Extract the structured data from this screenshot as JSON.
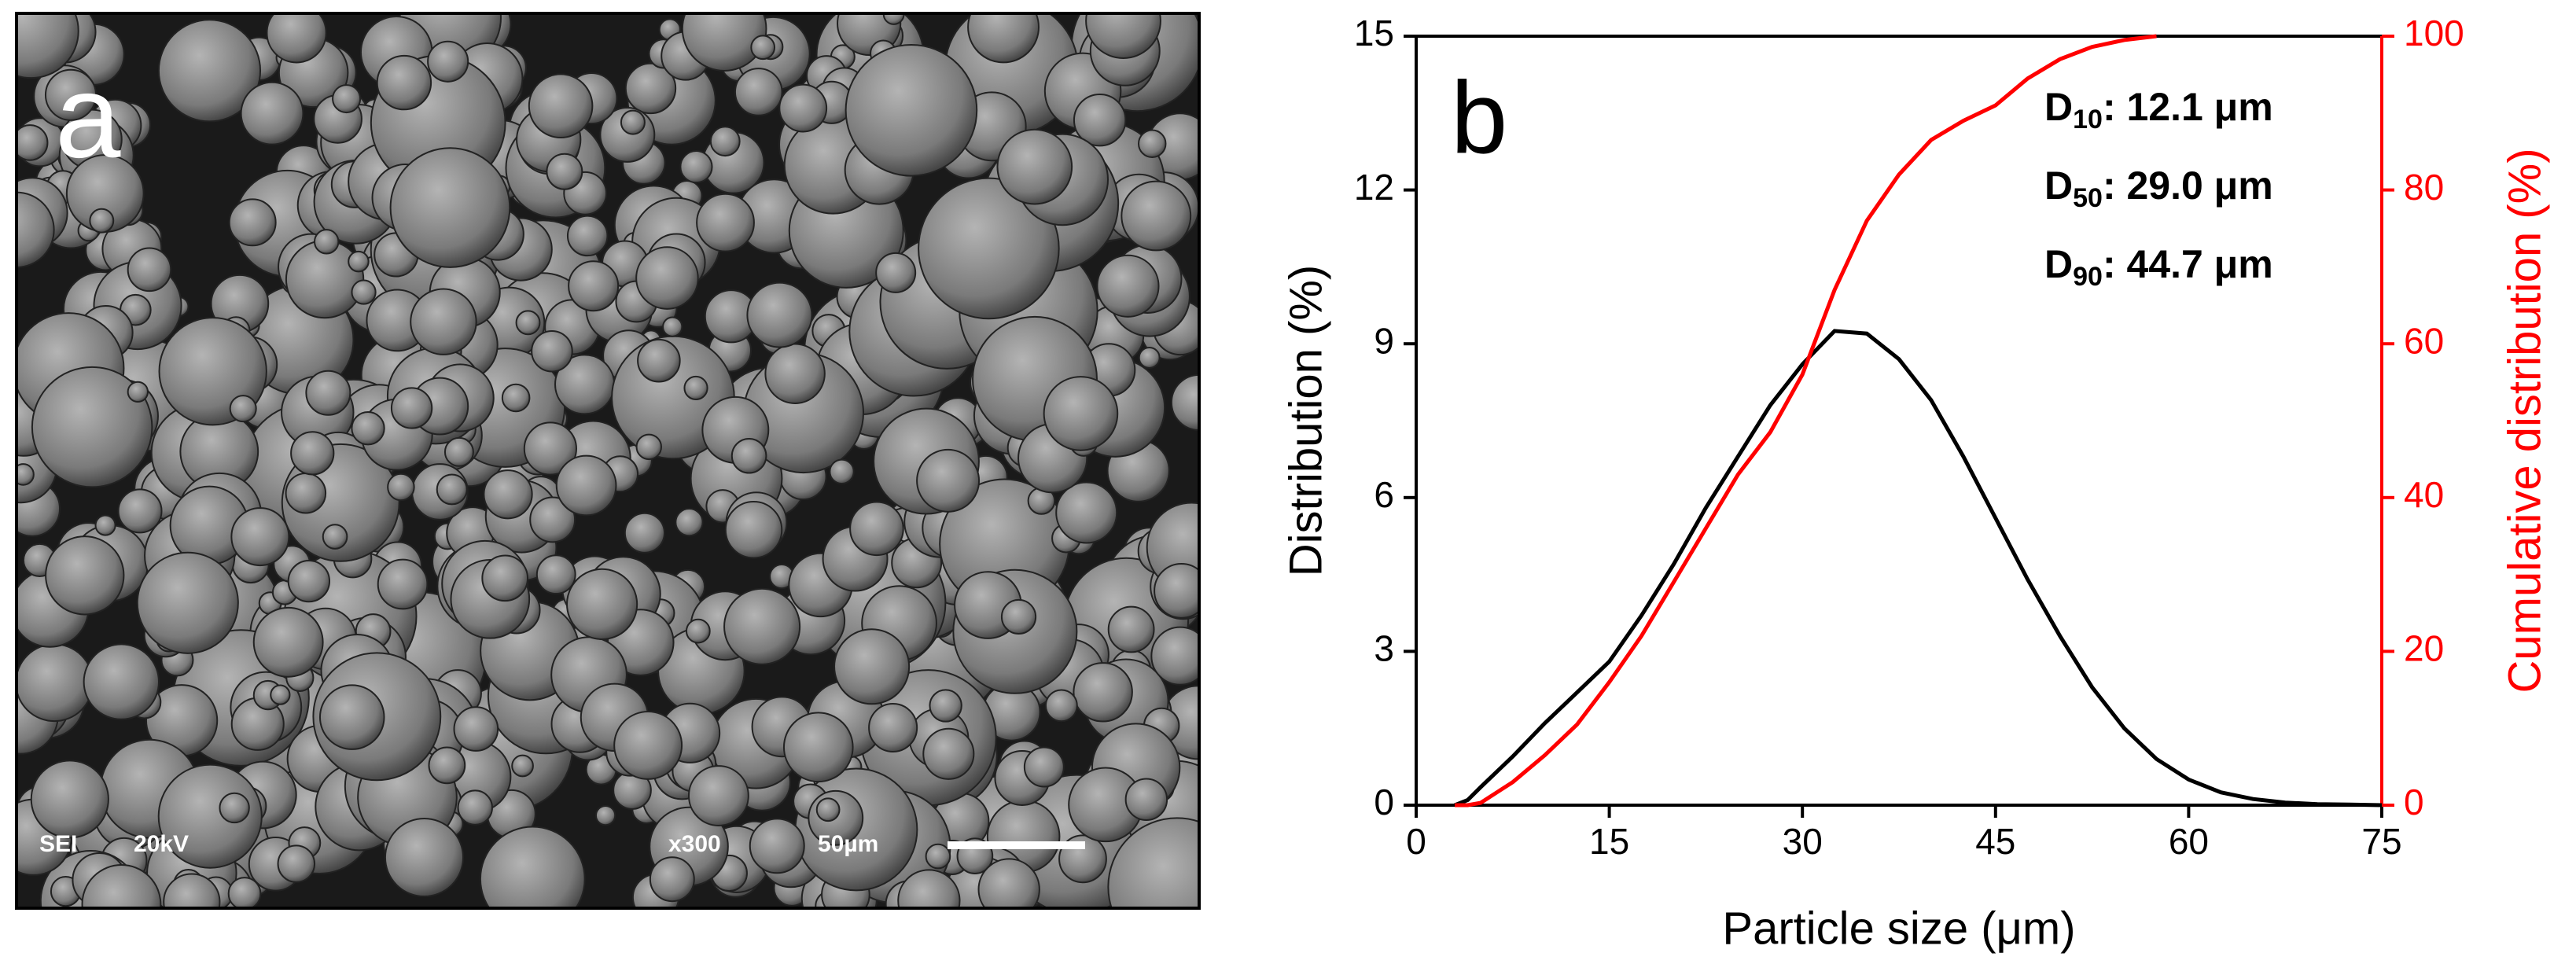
{
  "image_panel": {
    "label": "a",
    "info": [
      "SEI",
      "20kV",
      "x300",
      "50µm"
    ]
  },
  "chart_data": {
    "type": "line",
    "panel_label": "b",
    "xlabel": "Particle size (μm)",
    "ylabel": "Distribution (%)",
    "y2label": "Cumulative distribution (%)",
    "x": [
      3,
      4,
      5,
      7.5,
      10,
      12.5,
      15,
      17.5,
      20,
      22.5,
      25,
      27.5,
      30,
      32.5,
      35,
      37.5,
      40,
      42.5,
      45,
      47.5,
      50,
      52.5,
      55,
      57.5,
      60,
      62.5,
      65,
      67.5,
      70,
      72.5,
      75
    ],
    "series": [
      {
        "color": "#000000",
        "values": [
          0,
          0.1,
          0.35,
          0.95,
          1.6,
          2.2,
          2.8,
          3.7,
          4.7,
          5.8,
          6.8,
          7.8,
          8.6,
          9.25,
          9.2,
          8.7,
          7.9,
          6.8,
          5.6,
          4.4,
          3.3,
          2.3,
          1.5,
          0.9,
          0.5,
          0.25,
          0.12,
          0.05,
          0.02,
          0.01,
          0
        ]
      },
      {
        "color": "#ff0000",
        "axis": "y2",
        "values": [
          0,
          0,
          0.3,
          3,
          6.5,
          10.5,
          16,
          22,
          29,
          36,
          43,
          48.5,
          56,
          67,
          76,
          82,
          86.5,
          89,
          91,
          94.5,
          97,
          98.6,
          99.5,
          100,
          null,
          null,
          null,
          null,
          null,
          null,
          null
        ]
      }
    ],
    "xlim": [
      0,
      75
    ],
    "xticks": [
      0,
      15,
      30,
      45,
      60,
      75
    ],
    "ylim": [
      0,
      15
    ],
    "yticks": [
      0,
      3,
      6,
      9,
      12,
      15
    ],
    "y2lim": [
      0,
      100
    ],
    "y2ticks": [
      0,
      20,
      40,
      60,
      80,
      100
    ],
    "y2color": "#ff0000",
    "annotations": [
      {
        "symbol": "D",
        "sub": "10",
        "text": ": 12.1 μm"
      },
      {
        "symbol": "D",
        "sub": "50",
        "text": ": 29.0 μm"
      },
      {
        "symbol": "D",
        "sub": "90",
        "text": ": 44.7 μm"
      }
    ]
  }
}
